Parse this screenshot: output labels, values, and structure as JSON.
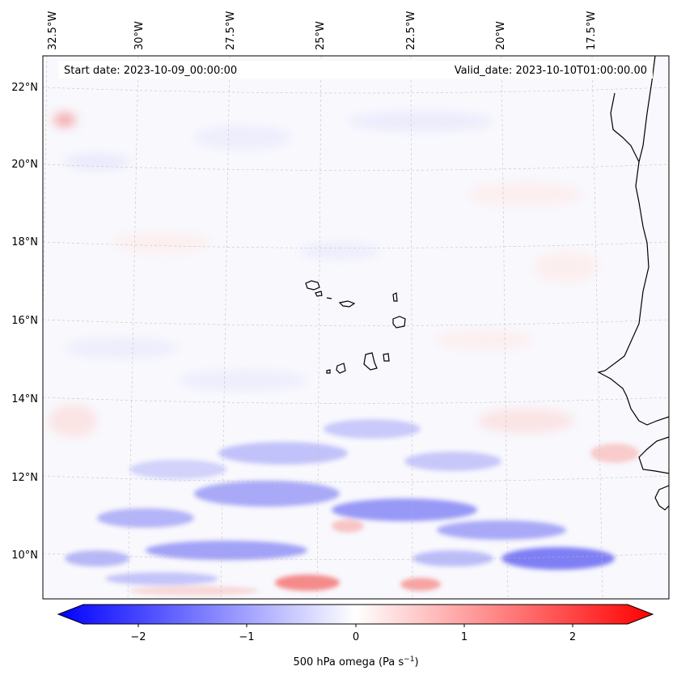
{
  "map": {
    "start_date": "Start date: 2023-10-09_00:00:00",
    "valid_date": "Valid_date: 2023-10-10T01:00:00.00",
    "lon_labels": [
      "32.5°W",
      "30°W",
      "27.5°W",
      "25°W",
      "22.5°W",
      "20°W",
      "17.5°W"
    ],
    "lat_labels": [
      "22°N",
      "20°N",
      "18°N",
      "16°N",
      "14°N",
      "12°N",
      "10°N"
    ],
    "colorbar": {
      "ticks": [
        "−2",
        "−1",
        "0",
        "1",
        "2"
      ],
      "label_main": "500 hPa omega (Pa s",
      "label_sup": "−1",
      "label_end": ")",
      "vmin": -2.7,
      "vmax": 2.7,
      "colors": {
        "neg": "#0000ff",
        "mid": "#ffffff",
        "pos": "#ff0000"
      }
    }
  }
}
